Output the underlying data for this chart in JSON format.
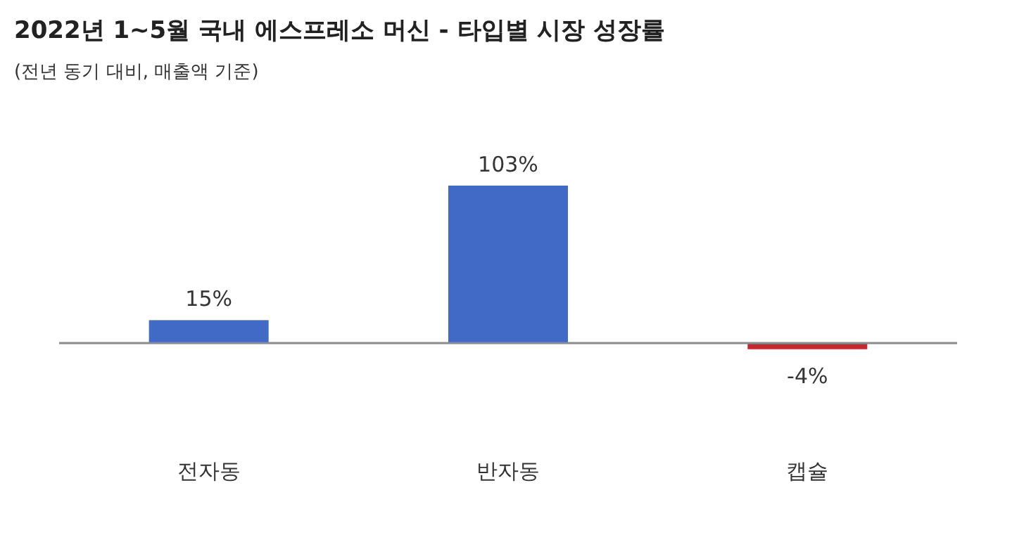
{
  "chart_data": {
    "type": "bar",
    "title": "2022년 1~5월 국내 에스프레소 머신 - 타입별 시장 성장률",
    "subtitle": "(전년 동기 대비, 매출액 기준)",
    "categories": [
      "전자동",
      "반자동",
      "캡슐"
    ],
    "values": [
      15,
      103,
      -4
    ],
    "colors": [
      "#4169c6",
      "#4169c6",
      "#c0282d"
    ],
    "value_labels": [
      "15%",
      "103%",
      "-4%"
    ]
  }
}
